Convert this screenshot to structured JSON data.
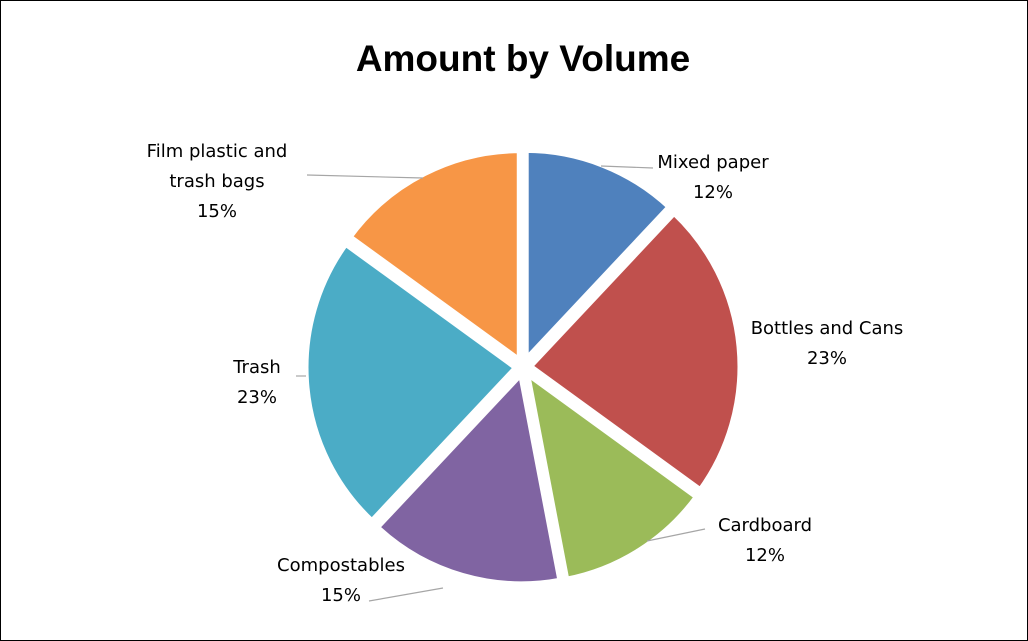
{
  "chart_data": {
    "type": "pie",
    "title": "Amount by Volume",
    "slices": [
      {
        "label_lines": [
          "Mixed paper"
        ],
        "percent_text": "12%",
        "value": 12,
        "color": "#4f81bd"
      },
      {
        "label_lines": [
          "Bottles and Cans"
        ],
        "percent_text": "23%",
        "value": 23,
        "color": "#c0504d"
      },
      {
        "label_lines": [
          "Cardboard"
        ],
        "percent_text": "12%",
        "value": 12,
        "color": "#9bbb59"
      },
      {
        "label_lines": [
          "Compostables"
        ],
        "percent_text": "15%",
        "value": 15,
        "color": "#8064a2"
      },
      {
        "label_lines": [
          "Trash"
        ],
        "percent_text": "23%",
        "value": 23,
        "color": "#4bacc6"
      },
      {
        "label_lines": [
          "Film plastic and",
          "trash bags"
        ],
        "percent_text": "15%",
        "value": 15,
        "color": "#f79646"
      }
    ],
    "start_angle_deg": 0,
    "direction": "clockwise",
    "legend": "none"
  }
}
